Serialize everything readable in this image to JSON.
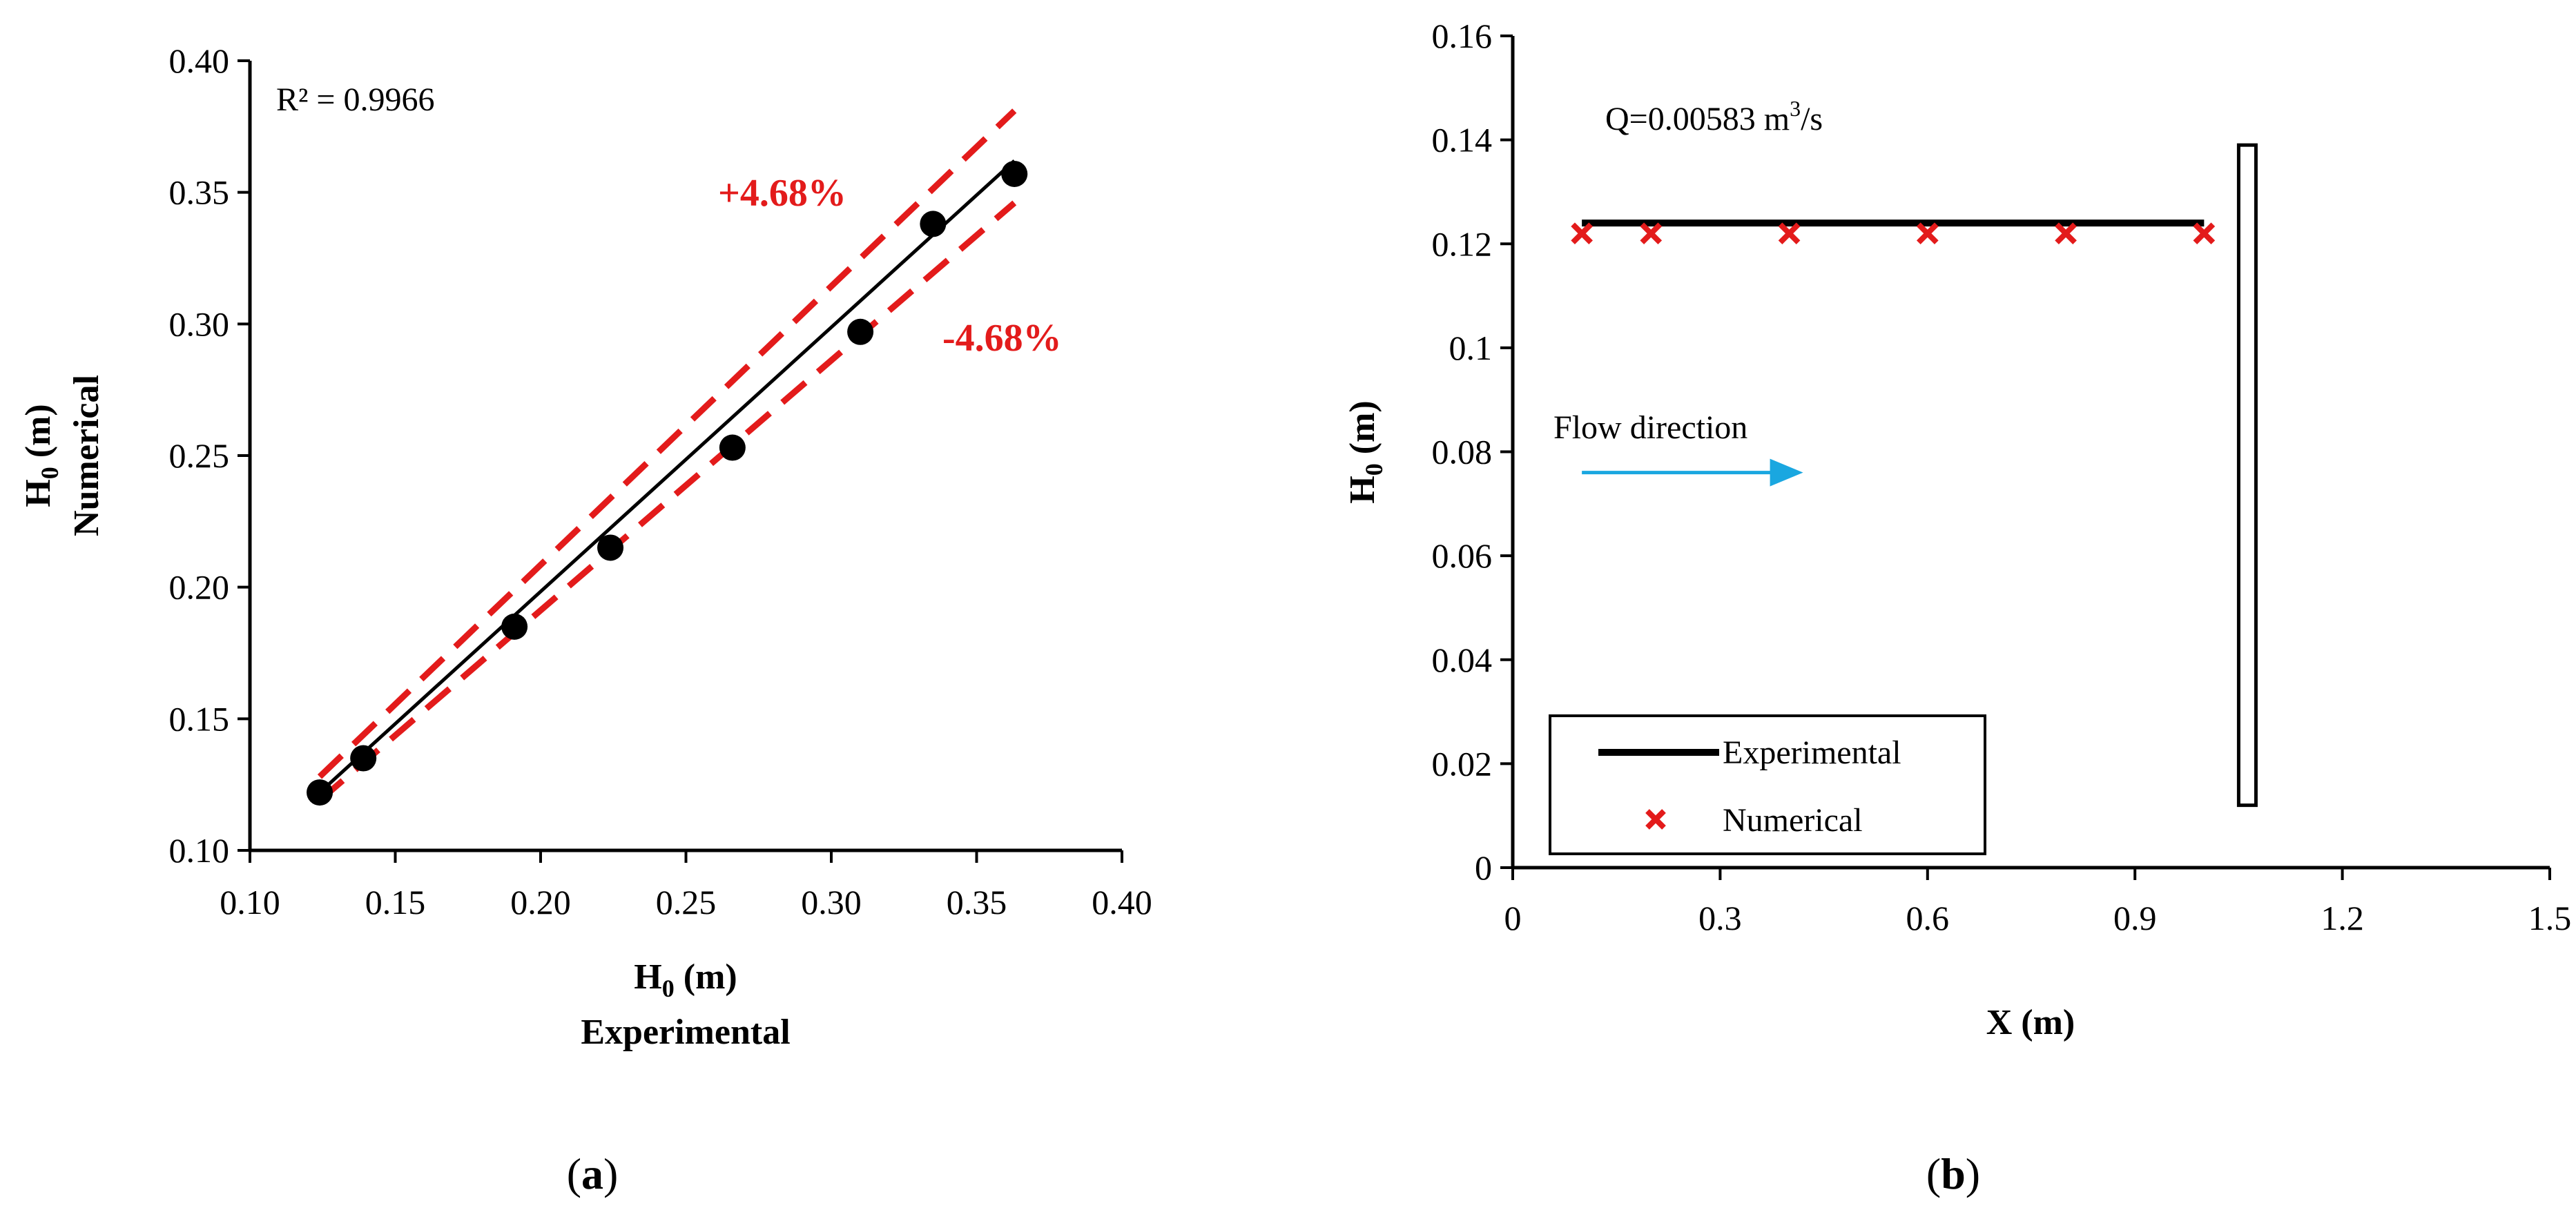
{
  "chart_data": [
    {
      "type": "scatter",
      "panel": "a",
      "caption": {
        "open": "(",
        "letter": "a",
        "close": ")"
      },
      "xlabel": {
        "symbol": "H",
        "sub": "0",
        "unit": " (m)",
        "line2": "Experimental"
      },
      "ylabel": {
        "symbol": "H",
        "sub": "0",
        "unit": " (m)",
        "line2": "Numerical"
      },
      "xlim": [
        0.1,
        0.4
      ],
      "ylim": [
        0.1,
        0.4
      ],
      "xticks": [
        "0.10",
        "0.15",
        "0.20",
        "0.25",
        "0.30",
        "0.35",
        "0.40"
      ],
      "yticks": [
        "0.10",
        "0.15",
        "0.20",
        "0.25",
        "0.30",
        "0.35",
        "0.40"
      ],
      "r2_label": "R² = 0.9966",
      "points": [
        {
          "x": 0.124,
          "y": 0.122
        },
        {
          "x": 0.139,
          "y": 0.135
        },
        {
          "x": 0.191,
          "y": 0.185
        },
        {
          "x": 0.224,
          "y": 0.215
        },
        {
          "x": 0.266,
          "y": 0.253
        },
        {
          "x": 0.31,
          "y": 0.297
        },
        {
          "x": 0.335,
          "y": 0.338
        },
        {
          "x": 0.363,
          "y": 0.357
        }
      ],
      "fit_line": [
        {
          "x": 0.124,
          "y": 0.122
        },
        {
          "x": 0.363,
          "y": 0.362
        }
      ],
      "upper_band": {
        "label": "+4.68%",
        "points": [
          {
            "x": 0.124,
            "y": 0.128
          },
          {
            "x": 0.363,
            "y": 0.381
          }
        ]
      },
      "lower_band": {
        "label": "-4.68%",
        "points": [
          {
            "x": 0.124,
            "y": 0.119
          },
          {
            "x": 0.363,
            "y": 0.346
          }
        ]
      },
      "colors": {
        "points": "#000000",
        "fit": "#000000",
        "band": "#e31b1b"
      }
    },
    {
      "type": "line",
      "panel": "b",
      "caption": {
        "open": "(",
        "letter": "b",
        "close": ")"
      },
      "xlabel": "X (m)",
      "ylabel": {
        "symbol": "H",
        "sub": "0",
        "unit": " (m)"
      },
      "xlim": [
        0,
        1.5
      ],
      "ylim": [
        0,
        0.16
      ],
      "xticks": [
        "0",
        "0.3",
        "0.6",
        "0.9",
        "1.2",
        "1.5"
      ],
      "yticks": [
        "0",
        "0.02",
        "0.04",
        "0.06",
        "0.08",
        "0.1",
        "0.12",
        "0.14",
        "0.16"
      ],
      "discharge_label": {
        "prefix": "Q=0.00583 m",
        "sup": "3",
        "suffix": "/s"
      },
      "flow_label": "Flow direction",
      "flow_arrow": {
        "x_start": 0.1,
        "x_end": 0.42,
        "y": 0.076
      },
      "weir": {
        "x_left": 1.05,
        "x_right": 1.075,
        "y_bottom": 0.012,
        "y_top": 0.139
      },
      "series": [
        {
          "name": "Experimental",
          "style": "line",
          "color": "#000000",
          "points": [
            {
              "x": 0.1,
              "y": 0.124
            },
            {
              "x": 1.0,
              "y": 0.124
            }
          ]
        },
        {
          "name": "Numerical",
          "style": "x-marker",
          "color": "#e31b1b",
          "points": [
            {
              "x": 0.1,
              "y": 0.122
            },
            {
              "x": 0.2,
              "y": 0.122
            },
            {
              "x": 0.4,
              "y": 0.122
            },
            {
              "x": 0.6,
              "y": 0.122
            },
            {
              "x": 0.8,
              "y": 0.122
            },
            {
              "x": 1.0,
              "y": 0.122
            }
          ]
        }
      ],
      "legend": {
        "position": "bottom-left",
        "entries": [
          "Experimental",
          "Numerical"
        ]
      },
      "colors": {
        "arrow": "#1aa7e0"
      }
    }
  ]
}
